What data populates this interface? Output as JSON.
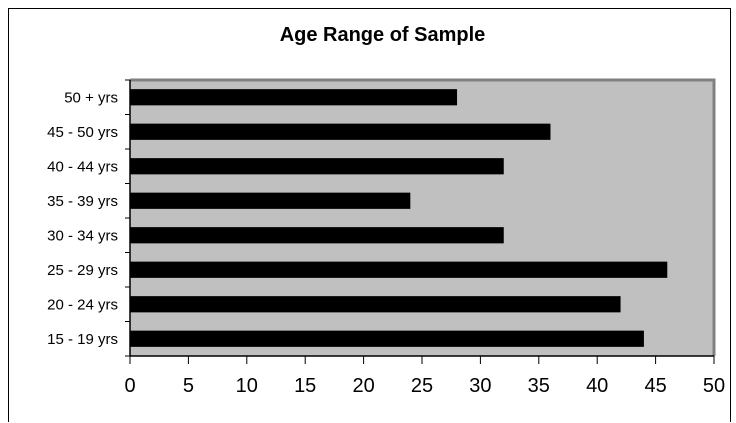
{
  "chart_data": {
    "type": "bar",
    "orientation": "horizontal",
    "title": "Age Range of Sample",
    "xlabel": "",
    "ylabel": "",
    "categories": [
      "15 - 19 yrs",
      "20 - 24 yrs",
      "25 - 29 yrs",
      "30 - 34 yrs",
      "35 - 39 yrs",
      "40 - 44 yrs",
      "45 - 50 yrs",
      "50 + yrs"
    ],
    "values": [
      44,
      42,
      46,
      32,
      24,
      32,
      36,
      28
    ],
    "xlim": [
      0,
      50
    ],
    "xticks": [
      0,
      5,
      10,
      15,
      20,
      25,
      30,
      35,
      40,
      45,
      50
    ],
    "xtick_labels": [
      "0",
      "5",
      "10",
      "15",
      "20",
      "25",
      "30",
      "35",
      "40",
      "45",
      "50"
    ],
    "grid": false,
    "legend": "none",
    "colors": {
      "bar": "#000000",
      "plot_background": "#c0c0c0",
      "plot_border": "#808080",
      "axis": "#000000"
    }
  }
}
